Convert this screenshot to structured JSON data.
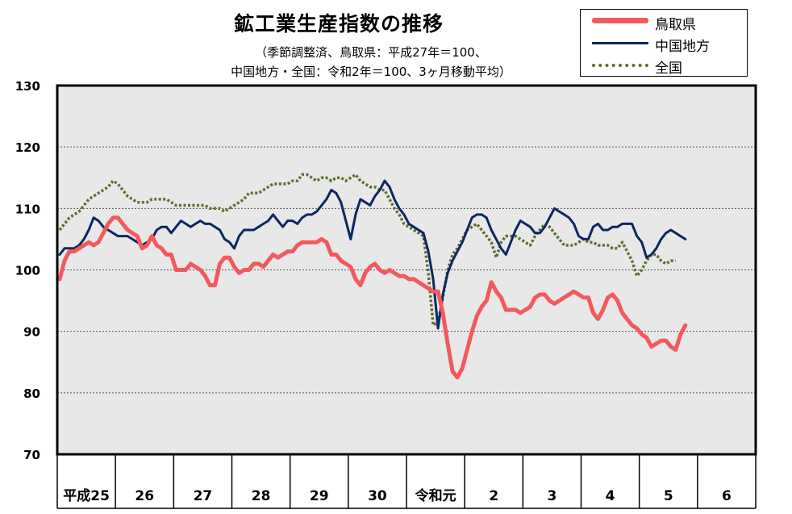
{
  "chart_data": {
    "type": "line",
    "title": "鉱工業生産指数の推移",
    "subtitle_line1": "（季節調整済、鳥取県：平成27年＝100、",
    "subtitle_line2": "中国地方・全国：令和2年＝100、3ヶ月移動平均）",
    "ylim": [
      70,
      130
    ],
    "yticks": [
      "70",
      "80",
      "90",
      "100",
      "110",
      "120",
      "130"
    ],
    "year_labels": [
      "平成25",
      "26",
      "27",
      "28",
      "29",
      "30",
      "令和元",
      "2",
      "3",
      "4",
      "5",
      "6"
    ],
    "months_per_year": 12,
    "grid": true,
    "legend_position": "top-right",
    "series": [
      {
        "name": "鳥取県",
        "color": "#f2595e",
        "style": "solid-thick",
        "values": [
          98.5,
          101.5,
          103,
          103,
          103.5,
          104,
          104.5,
          104,
          104.5,
          106,
          107.5,
          108.5,
          108.5,
          107.5,
          106.5,
          106,
          105.5,
          103.5,
          104,
          105.5,
          104,
          103.5,
          102.5,
          102.5,
          100,
          100,
          100,
          101,
          100.5,
          100,
          99,
          97.5,
          97.5,
          101,
          102,
          102,
          100.5,
          99.5,
          100,
          100,
          101,
          101,
          100.5,
          101.5,
          102.5,
          102,
          102.5,
          103,
          103,
          104,
          104.5,
          104.5,
          104.5,
          104.5,
          105,
          104.5,
          102.5,
          102.5,
          101.5,
          101,
          100.5,
          98.5,
          97.5,
          99.5,
          100.5,
          101,
          100,
          99.5,
          100,
          99.5,
          99,
          99,
          98.5,
          98.5,
          98,
          97.5,
          97,
          96.5,
          96.5,
          93,
          88,
          83.5,
          82.5,
          84,
          87,
          90,
          92.5,
          94,
          95,
          98,
          96.5,
          95.5,
          93.5,
          93.5,
          93.5,
          93,
          93.5,
          94,
          95.5,
          96,
          96,
          95,
          94.5,
          95,
          95.5,
          96,
          96.5,
          96,
          95.5,
          95.5,
          93,
          92,
          93.5,
          95.5,
          96,
          95,
          93,
          92,
          91,
          90.5,
          89.5,
          89,
          87.5,
          88,
          88.5,
          88.5,
          87.5,
          87,
          89.5,
          91
        ]
      },
      {
        "name": "中国地方",
        "color": "#0d2761",
        "style": "solid",
        "values": [
          102.5,
          103.5,
          103.5,
          103.5,
          104,
          105,
          106.5,
          108.5,
          108,
          107,
          106.5,
          106,
          105.5,
          105.5,
          105.5,
          105,
          104.5,
          104,
          104.5,
          105,
          106.5,
          107,
          107,
          106,
          107,
          108,
          107.5,
          107,
          107.5,
          108,
          107.5,
          107.5,
          107,
          106.5,
          105,
          104.5,
          103.5,
          105.5,
          106.5,
          106.5,
          106.5,
          107,
          107.5,
          108,
          109,
          108,
          107,
          108,
          108,
          107.5,
          108.5,
          109,
          109,
          109.5,
          110.5,
          111.5,
          113,
          112.5,
          111,
          108,
          105,
          109,
          111.5,
          111,
          110.5,
          112,
          113,
          114.5,
          113.5,
          111.5,
          110,
          109,
          107.5,
          107,
          106.5,
          106,
          103,
          98.5,
          90.5,
          96,
          99.5,
          101.5,
          103,
          104.5,
          106.5,
          108.5,
          109,
          109,
          108.5,
          106.5,
          105,
          103.5,
          102.5,
          104.5,
          106.5,
          108,
          107.5,
          107,
          106,
          106,
          107,
          108.5,
          110,
          109.5,
          109,
          108.5,
          107.5,
          105.5,
          105,
          105,
          107,
          107.5,
          106.5,
          106.5,
          107,
          107,
          107.5,
          107.5,
          107.5,
          105.5,
          104.5,
          102,
          102.5,
          103.5,
          105,
          106,
          106.5,
          106,
          105.5,
          105
        ]
      },
      {
        "name": "全国",
        "color": "#5e6e2e",
        "style": "dotted",
        "values": [
          106.5,
          107.5,
          108.5,
          109,
          109.5,
          110.5,
          111.5,
          112,
          112.5,
          113,
          113.5,
          114.5,
          114,
          113,
          112,
          111.5,
          111,
          111,
          111,
          111.5,
          111.5,
          111.5,
          111.5,
          111,
          110.5,
          110.5,
          110.5,
          110.5,
          110.5,
          110.5,
          110.5,
          110,
          110,
          110,
          109.5,
          110,
          110.5,
          111,
          111.5,
          112.5,
          112.5,
          112.5,
          113,
          113.5,
          114,
          114,
          114,
          114,
          114.5,
          114.5,
          115.5,
          115.5,
          115,
          114.5,
          115,
          115,
          114.5,
          115,
          115,
          114.5,
          115,
          115.5,
          114.5,
          114,
          113.5,
          113.5,
          113,
          113,
          111.5,
          110,
          109,
          107.5,
          107,
          106.5,
          106,
          105.5,
          99.5,
          91,
          91.5,
          95.5,
          100,
          102.5,
          103.5,
          105,
          106.5,
          107,
          107.5,
          106.5,
          105.5,
          104.5,
          102,
          104.5,
          105.5,
          105.5,
          105.5,
          105,
          104.5,
          104,
          105.5,
          106.5,
          107.5,
          107,
          106,
          105,
          104,
          104,
          104,
          104.5,
          105,
          104.5,
          104.5,
          104,
          104,
          104,
          103.5,
          103.5,
          104.5,
          103,
          101.5,
          99,
          100,
          101.5,
          102.5,
          102.5,
          101.5,
          101,
          101.5,
          101.5
        ]
      }
    ]
  }
}
